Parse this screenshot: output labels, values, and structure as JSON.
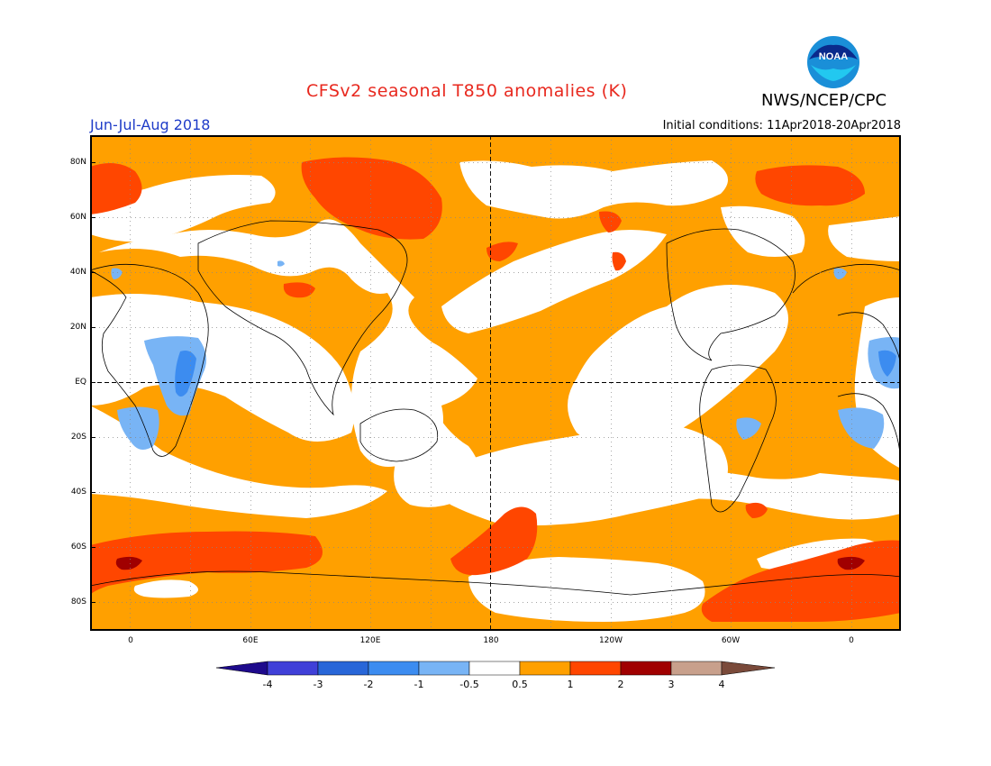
{
  "title": "CFSv2 seasonal T850 anomalies (K)",
  "agency": "NWS/NCEP/CPC",
  "season": "Jun-Jul-Aug 2018",
  "initial_conditions": "Initial conditions: 11Apr2018-20Apr2018",
  "logo": {
    "text": "NOAA",
    "icon": "noaa-logo-icon"
  },
  "lat_labels": [
    "80N",
    "60N",
    "40N",
    "20N",
    "EQ",
    "20S",
    "40S",
    "60S",
    "80S"
  ],
  "lon_labels": [
    "0",
    "60E",
    "120E",
    "180",
    "120W",
    "60W",
    "0"
  ],
  "colorbar": {
    "labels": [
      "-4",
      "-3",
      "-2",
      "-1",
      "-0.5",
      "0.5",
      "1",
      "2",
      "3",
      "4"
    ],
    "colors": [
      "#1e0a8c",
      "#4040d8",
      "#2866d8",
      "#3c8cf0",
      "#78b4f5",
      "#ffffff",
      "#ffa000",
      "#ff4600",
      "#a00000",
      "#c8a08c",
      "#7a4a3a"
    ]
  },
  "colors": {
    "title": "#e8281e",
    "season": "#1f3cc8",
    "anom_05_1": "#ffa000",
    "anom_1_2": "#ff4600",
    "anom_2_3": "#a00000",
    "anom_neg_05_1": "#78b4f5",
    "anom_neg_1_2": "#3c8cf0"
  }
}
